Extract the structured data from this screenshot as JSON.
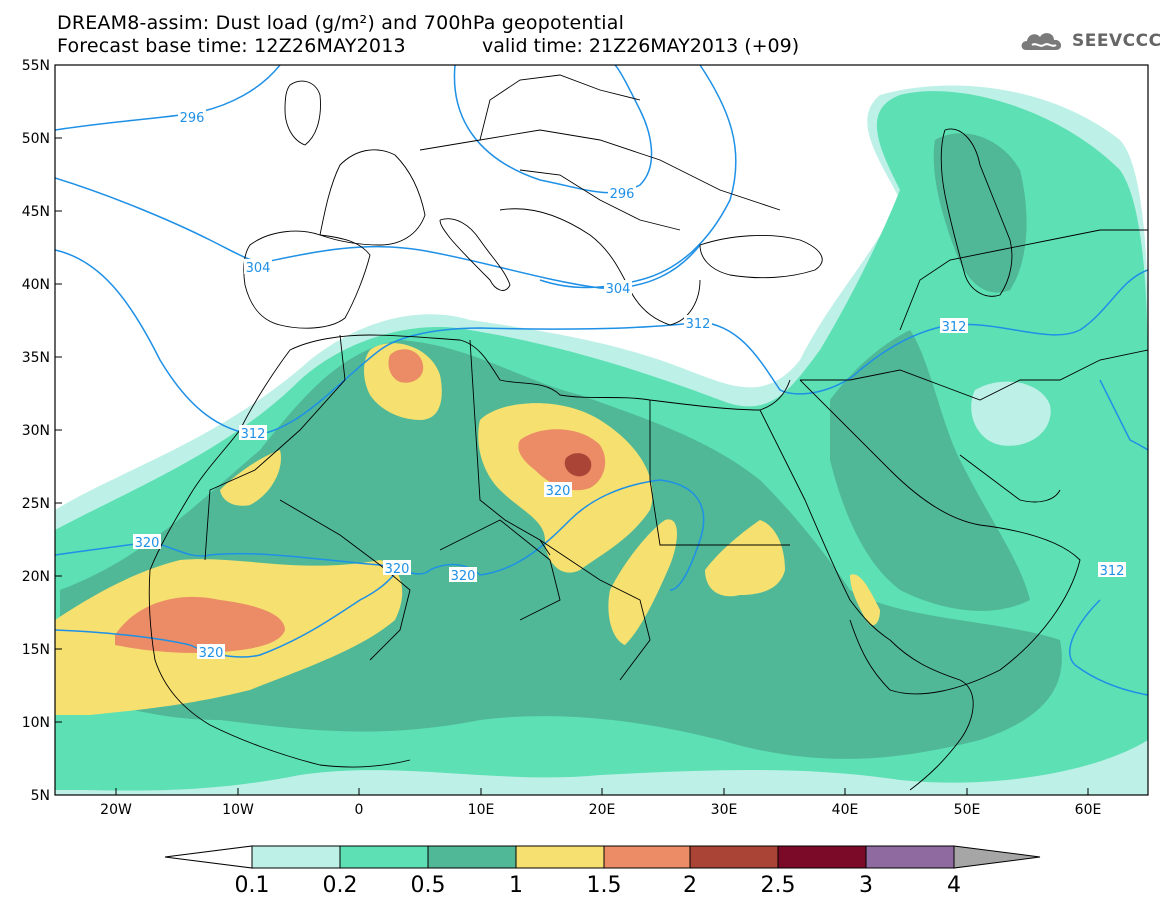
{
  "header": {
    "title": "DREAM8-assim: Dust load (g/m²) and 700hPa geopotential",
    "base_time": "Forecast base time: 12Z26MAY2013",
    "valid_time": "valid time: 21Z26MAY2013 (+09)"
  },
  "logo": {
    "text": "SEEVCCC",
    "icon": "cloud-icon"
  },
  "axes": {
    "y_labels": [
      "55N",
      "50N",
      "45N",
      "40N",
      "35N",
      "30N",
      "25N",
      "20N",
      "15N",
      "10N",
      "5N"
    ],
    "x_labels": [
      "20W",
      "10W",
      "0",
      "10E",
      "20E",
      "30E",
      "40E",
      "50E",
      "60E"
    ]
  },
  "contour_labels": [
    "296",
    "296",
    "304",
    "304",
    "312",
    "312",
    "312",
    "312",
    "320",
    "320",
    "320",
    "320",
    "320"
  ],
  "colorbar": {
    "labels": [
      "0.1",
      "0.2",
      "0.5",
      "1",
      "1.5",
      "2",
      "2.5",
      "3",
      "4"
    ],
    "colors": [
      "#bdf0e6",
      "#5ce0b4",
      "#50b896",
      "#f5e070",
      "#eb8c66",
      "#aa4436",
      "#7a0a28",
      "#8e6aa0"
    ],
    "min_color": "#ffffff",
    "max_color": "#a6a6a6"
  },
  "colors": {
    "contour": "#1e90e6",
    "border": "#000000"
  }
}
